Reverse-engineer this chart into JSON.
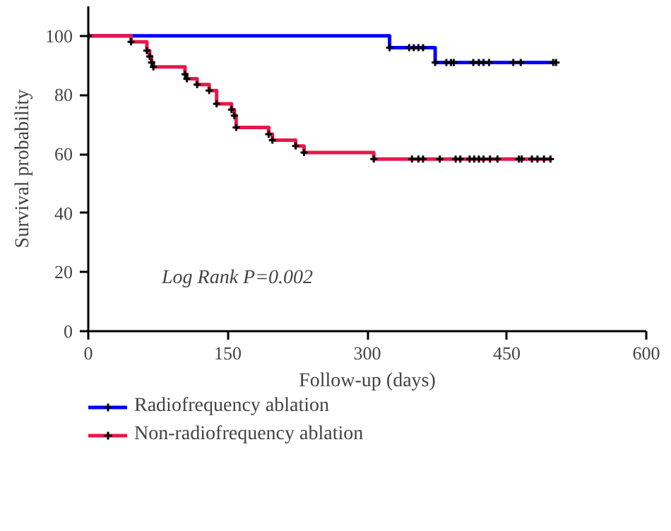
{
  "chart_data": {
    "type": "step",
    "xlabel": "Follow-up (days)",
    "ylabel": "Survival probability",
    "xlim": [
      0,
      600
    ],
    "ylim": [
      0,
      110
    ],
    "xticks": [
      0,
      150,
      300,
      450,
      600
    ],
    "yticks": [
      0,
      20,
      40,
      60,
      80,
      100
    ],
    "grid": false,
    "legend": "bottom",
    "marker": "cross",
    "annotations": [
      "Log Rank P=0.002"
    ],
    "series": [
      {
        "name": "Radiofrequency ablation",
        "color": "#0000ff",
        "x": [
          0,
          324,
          345,
          350,
          355,
          360,
          373,
          385,
          390,
          393,
          414,
          420,
          425,
          431,
          457,
          465,
          500,
          503
        ],
        "values": [
          100,
          96,
          96,
          96,
          96,
          96,
          91,
          91,
          91,
          91,
          91,
          91,
          91,
          91,
          91,
          91,
          91,
          91
        ]
      },
      {
        "name": "Non-radiofrequency ablation",
        "color": "#e8174a",
        "x": [
          0,
          46,
          63,
          66,
          68,
          70,
          104,
          106,
          117,
          130,
          138,
          154,
          157,
          159,
          194,
          198,
          223,
          232,
          307,
          348,
          355,
          360,
          378,
          395,
          400,
          410,
          415,
          420,
          425,
          432,
          440,
          463,
          466,
          477,
          483,
          490,
          497
        ],
        "values": [
          100,
          98,
          95,
          93,
          91,
          89.5,
          87,
          85.5,
          83.5,
          81.5,
          77,
          75,
          73,
          69,
          66.7,
          64.7,
          62.7,
          60.5,
          58.3,
          58.3,
          58.3,
          58.3,
          58.3,
          58.3,
          58.3,
          58.3,
          58.3,
          58.3,
          58.3,
          58.3,
          58.3,
          58.3,
          58.3,
          58.3,
          58.3,
          58.3,
          58.3
        ]
      }
    ]
  }
}
